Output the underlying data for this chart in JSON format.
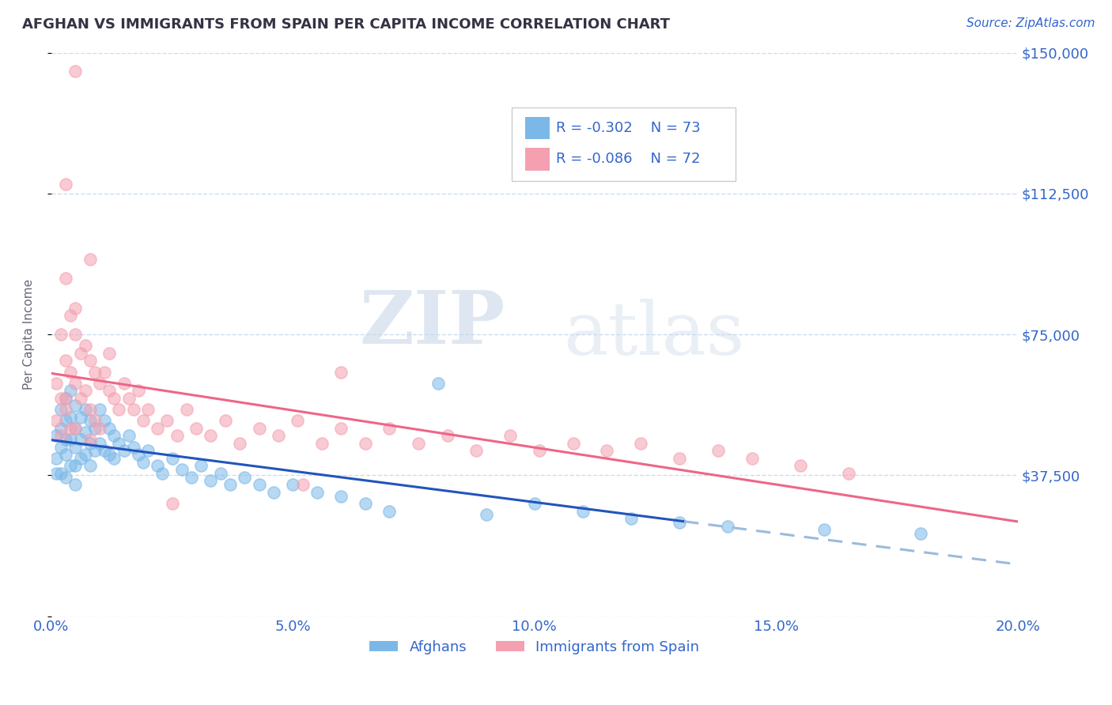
{
  "title": "AFGHAN VS IMMIGRANTS FROM SPAIN PER CAPITA INCOME CORRELATION CHART",
  "source": "Source: ZipAtlas.com",
  "ylabel": "Per Capita Income",
  "xlim": [
    0.0,
    0.2
  ],
  "ylim": [
    0,
    150000
  ],
  "yticks": [
    0,
    37500,
    75000,
    112500,
    150000
  ],
  "ytick_labels": [
    "",
    "$37,500",
    "$75,000",
    "$112,500",
    "$150,000"
  ],
  "xtick_labels": [
    "0.0%",
    "5.0%",
    "10.0%",
    "15.0%",
    "20.0%"
  ],
  "xticks": [
    0.0,
    0.05,
    0.1,
    0.15,
    0.2
  ],
  "watermark_zip": "ZIP",
  "watermark_atlas": "atlas",
  "legend_r1": "R = -0.302",
  "legend_n1": "N = 73",
  "legend_r2": "R = -0.086",
  "legend_n2": "N = 72",
  "blue_scatter_color": "#7BB8E8",
  "pink_scatter_color": "#F4A0B0",
  "blue_line_color": "#2255BB",
  "blue_dash_color": "#99BBDD",
  "pink_line_color": "#EE6688",
  "title_color": "#333344",
  "tick_label_color": "#3366CC",
  "ylabel_color": "#666677",
  "background_color": "#FFFFFF",
  "grid_color": "#CCDDEE",
  "afghans_x": [
    0.001,
    0.001,
    0.001,
    0.002,
    0.002,
    0.002,
    0.002,
    0.003,
    0.003,
    0.003,
    0.003,
    0.003,
    0.004,
    0.004,
    0.004,
    0.004,
    0.005,
    0.005,
    0.005,
    0.005,
    0.005,
    0.006,
    0.006,
    0.006,
    0.007,
    0.007,
    0.007,
    0.008,
    0.008,
    0.008,
    0.009,
    0.009,
    0.01,
    0.01,
    0.011,
    0.011,
    0.012,
    0.012,
    0.013,
    0.013,
    0.014,
    0.015,
    0.016,
    0.017,
    0.018,
    0.019,
    0.02,
    0.022,
    0.023,
    0.025,
    0.027,
    0.029,
    0.031,
    0.033,
    0.035,
    0.037,
    0.04,
    0.043,
    0.046,
    0.05,
    0.055,
    0.06,
    0.065,
    0.07,
    0.08,
    0.09,
    0.1,
    0.11,
    0.12,
    0.13,
    0.14,
    0.16,
    0.18
  ],
  "afghans_y": [
    48000,
    42000,
    38000,
    55000,
    50000,
    45000,
    38000,
    58000,
    52000,
    47000,
    43000,
    37000,
    60000,
    53000,
    47000,
    40000,
    56000,
    50000,
    45000,
    40000,
    35000,
    53000,
    47000,
    42000,
    55000,
    49000,
    43000,
    52000,
    46000,
    40000,
    50000,
    44000,
    55000,
    46000,
    52000,
    44000,
    50000,
    43000,
    48000,
    42000,
    46000,
    44000,
    48000,
    45000,
    43000,
    41000,
    44000,
    40000,
    38000,
    42000,
    39000,
    37000,
    40000,
    36000,
    38000,
    35000,
    37000,
    35000,
    33000,
    35000,
    33000,
    32000,
    30000,
    28000,
    62000,
    27000,
    30000,
    28000,
    26000,
    25000,
    24000,
    23000,
    22000
  ],
  "spain_x": [
    0.001,
    0.001,
    0.002,
    0.002,
    0.002,
    0.003,
    0.003,
    0.003,
    0.004,
    0.004,
    0.004,
    0.005,
    0.005,
    0.005,
    0.006,
    0.006,
    0.007,
    0.007,
    0.008,
    0.008,
    0.009,
    0.009,
    0.01,
    0.01,
    0.011,
    0.012,
    0.013,
    0.014,
    0.015,
    0.016,
    0.017,
    0.018,
    0.019,
    0.02,
    0.022,
    0.024,
    0.026,
    0.028,
    0.03,
    0.033,
    0.036,
    0.039,
    0.043,
    0.047,
    0.051,
    0.056,
    0.06,
    0.065,
    0.07,
    0.076,
    0.082,
    0.088,
    0.095,
    0.101,
    0.108,
    0.115,
    0.122,
    0.13,
    0.138,
    0.145,
    0.052,
    0.025,
    0.005,
    0.003,
    0.008,
    0.005,
    0.012,
    0.003,
    0.008,
    0.06,
    0.155,
    0.165
  ],
  "spain_y": [
    62000,
    52000,
    75000,
    58000,
    48000,
    90000,
    68000,
    55000,
    80000,
    65000,
    50000,
    75000,
    62000,
    50000,
    70000,
    58000,
    72000,
    60000,
    68000,
    55000,
    65000,
    52000,
    62000,
    50000,
    65000,
    60000,
    58000,
    55000,
    62000,
    58000,
    55000,
    60000,
    52000,
    55000,
    50000,
    52000,
    48000,
    55000,
    50000,
    48000,
    52000,
    46000,
    50000,
    48000,
    52000,
    46000,
    50000,
    46000,
    50000,
    46000,
    48000,
    44000,
    48000,
    44000,
    46000,
    44000,
    46000,
    42000,
    44000,
    42000,
    35000,
    30000,
    145000,
    115000,
    95000,
    82000,
    70000,
    58000,
    47000,
    65000,
    40000,
    38000
  ]
}
